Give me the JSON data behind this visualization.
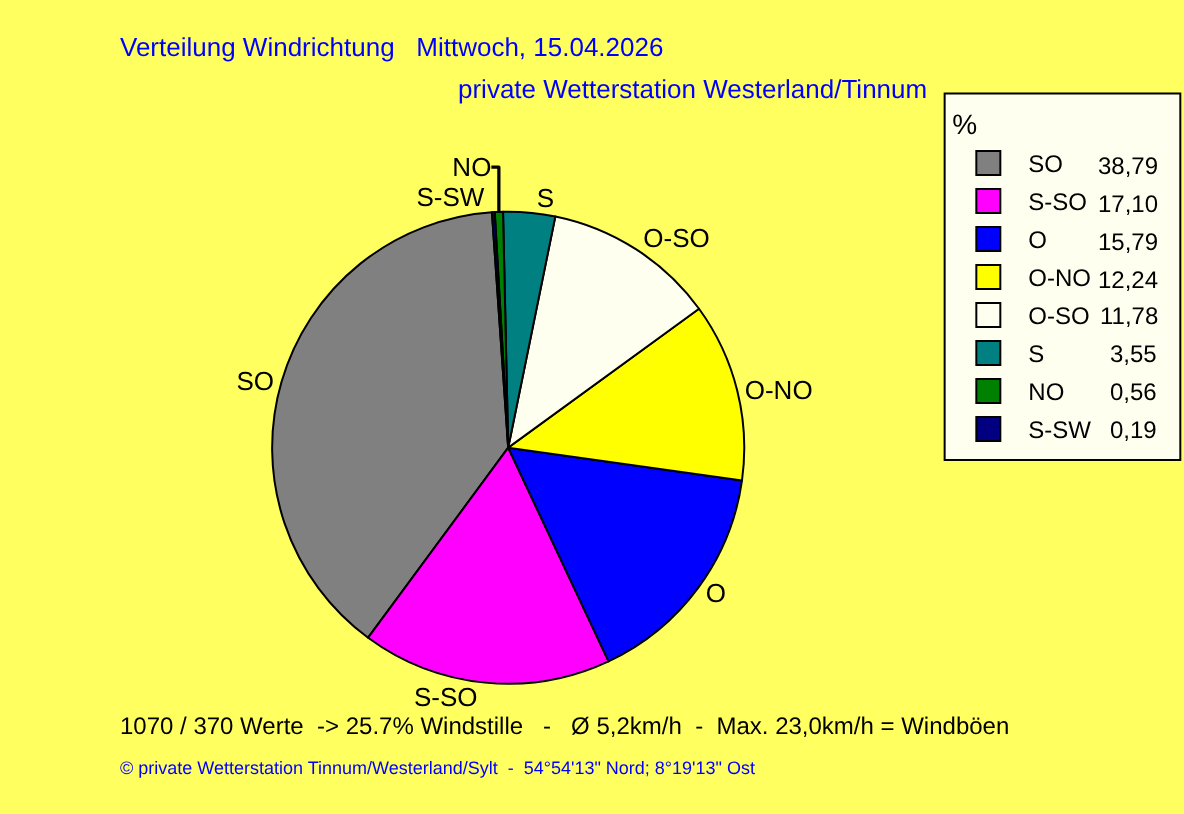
{
  "chart_data": {
    "type": "pie",
    "title": "Verteilung Windrichtung   Mittwoch, 15.04.2026",
    "subtitle": "private Wetterstation Westerland/Tinnum",
    "categories": [
      "SO",
      "S-SO",
      "O",
      "O-NO",
      "O-SO",
      "S",
      "NO",
      "S-SW"
    ],
    "values": [
      38.79,
      17.1,
      15.79,
      12.24,
      11.78,
      3.55,
      0.56,
      0.19
    ],
    "value_labels": [
      "38,79",
      "17,10",
      "15,79",
      "12,24",
      "11,78",
      "3,55",
      "0,56",
      "0,19"
    ],
    "colors": [
      "#808080",
      "#ff00ff",
      "#0000ff",
      "#ffff00",
      "#fffff0",
      "#008080",
      "#008000",
      "#000080"
    ],
    "legend_title": "%",
    "legend": "top right",
    "annotations": [
      "1070 / 370 Werte  -> 25.7% Windstille   -   Ø 5,2km/h  -  Max. 23,0km/h = Windböen",
      "© private Wetterstation Tinnum/Westerland/Sylt  -  54°54'13\" Nord; 8°19'13\" Ost"
    ]
  }
}
